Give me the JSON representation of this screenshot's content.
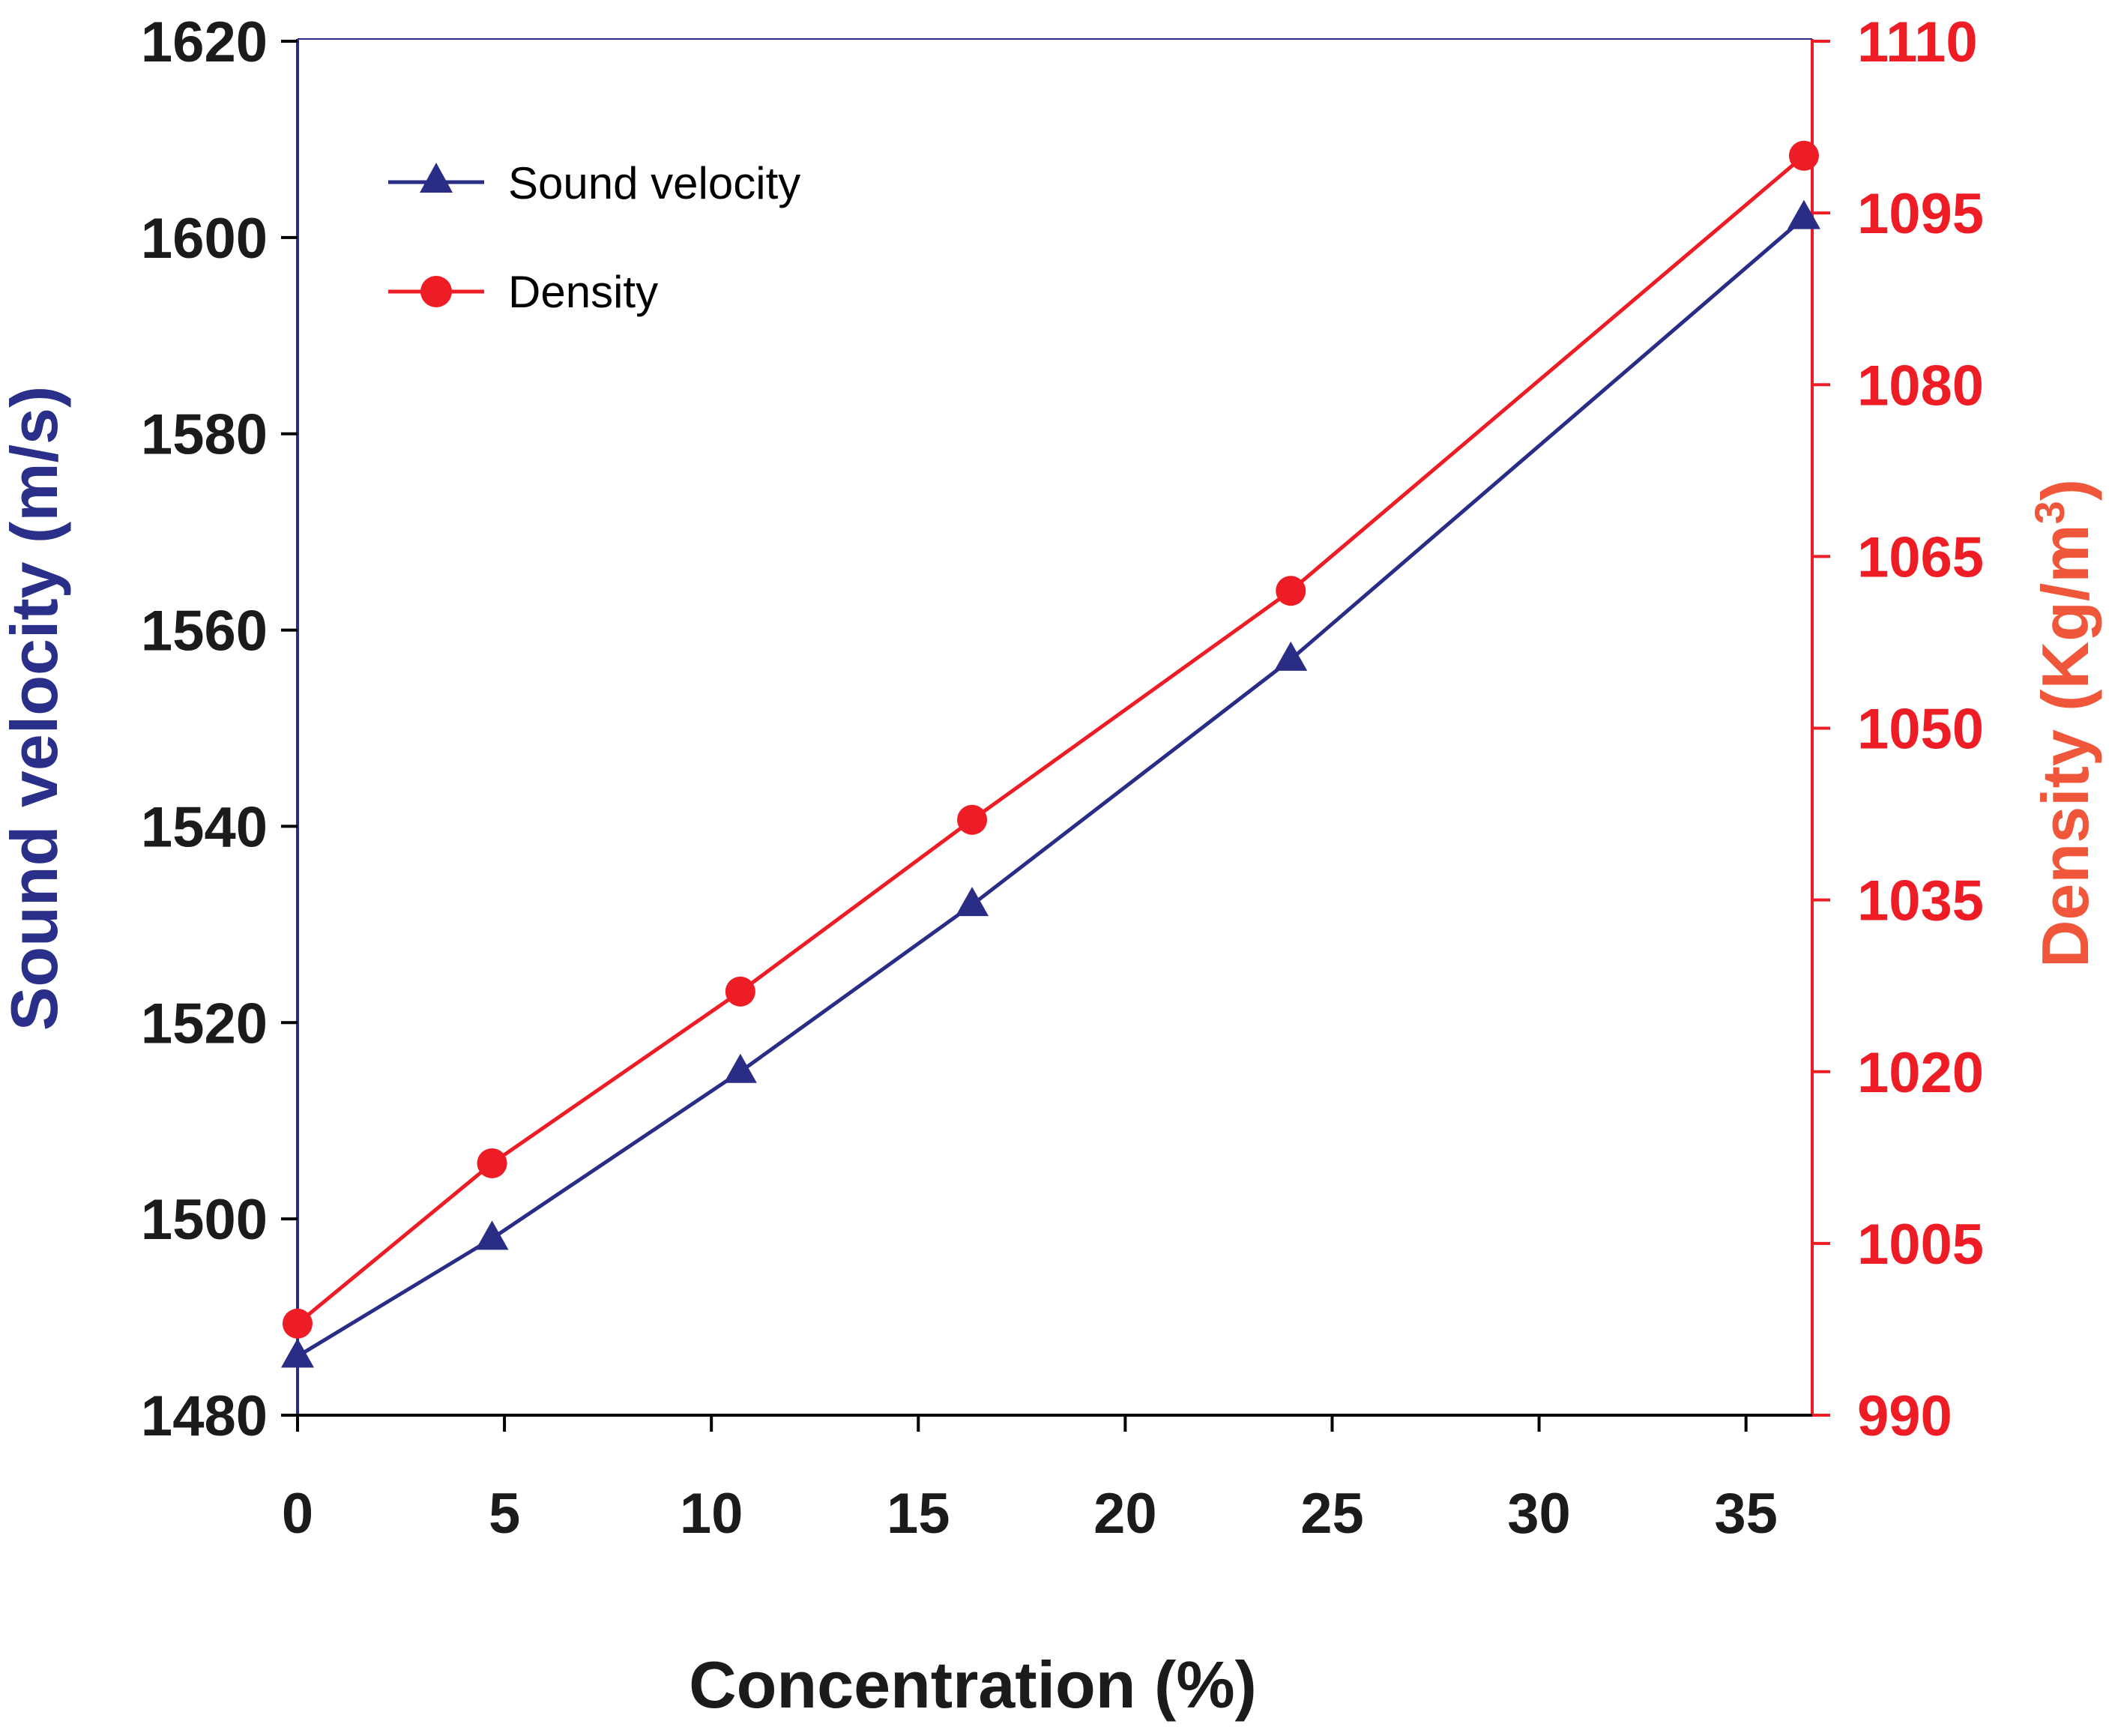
{
  "chart_data": {
    "type": "line",
    "title": "",
    "xlabel": "Concentration (%)",
    "x_ticks": [
      0,
      5,
      10,
      15,
      20,
      25,
      30,
      35
    ],
    "x_ticklabels": [
      "0",
      "5",
      "10",
      "15",
      "20",
      "25",
      "30",
      "35"
    ],
    "xlim": [
      0,
      36.6
    ],
    "y_left": {
      "label": "Sound velocity (m/s)",
      "lim": [
        1480,
        1620
      ],
      "ticks": [
        1480,
        1500,
        1520,
        1540,
        1560,
        1580,
        1600,
        1620
      ],
      "ticklabels": [
        "1480",
        "1500",
        "1520",
        "1540",
        "1560",
        "1580",
        "1600",
        "1620"
      ]
    },
    "y_right": {
      "label": "Density (Kg/m",
      "label_superscript": "3",
      "label_suffix": ")",
      "lim": [
        990,
        1110
      ],
      "ticks": [
        990,
        1005,
        1020,
        1035,
        1050,
        1065,
        1080,
        1095,
        1110
      ],
      "ticklabels": [
        "990",
        "1005",
        "1020",
        "1035",
        "1050",
        "1065",
        "1080",
        "1095",
        "1110"
      ]
    },
    "series": [
      {
        "name": "Sound velocity",
        "axis": "left",
        "marker": "triangle",
        "x": [
          0,
          4.7,
          10.7,
          16.3,
          24.0,
          36.4
        ],
        "values": [
          1486,
          1498,
          1515,
          1532,
          1557,
          1602
        ]
      },
      {
        "name": "Density",
        "axis": "right",
        "marker": "circle",
        "x": [
          0,
          4.7,
          10.7,
          16.3,
          24.0,
          36.4
        ],
        "values": [
          998,
          1012,
          1027,
          1042,
          1062,
          1100
        ]
      }
    ],
    "legend": {
      "placement": "top-left",
      "entries": [
        "Sound velocity",
        "Density"
      ]
    },
    "grid": false
  },
  "colors": {
    "velocity_line": "#2a2d86",
    "density_line": "#ee1c25",
    "left_axis": "#2a2d86",
    "right_axis": "#ee1c25",
    "bottom_axis": "#000000",
    "left_title": "#2a3089",
    "right_title": "#f0563a",
    "left_tick_text": "#1b1b1b",
    "right_tick_text": "#ee1c25",
    "x_text": "#1b1b1b"
  }
}
